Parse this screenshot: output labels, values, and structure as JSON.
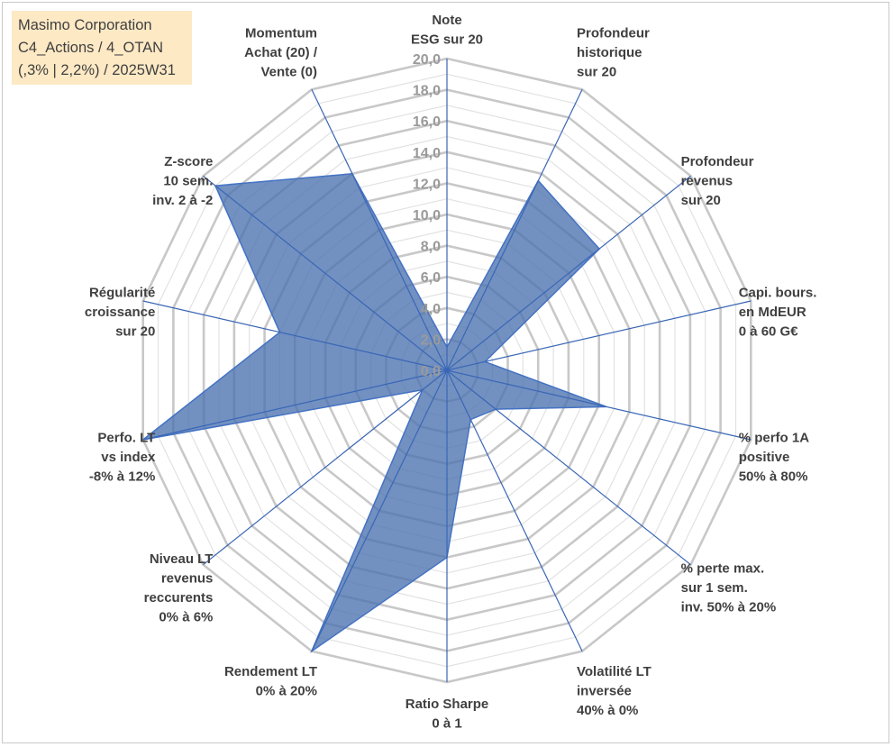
{
  "title_box": {
    "lines": [
      "Masimo Corporation",
      "C4_Actions / 4_OTAN",
      "(,3% | 2,2%) / 2025W31"
    ]
  },
  "chart_data": {
    "type": "radar",
    "axes": [
      {
        "label": [
          "Note",
          "ESG sur 20"
        ],
        "value": 1.5
      },
      {
        "label": [
          "Profondeur",
          "historique",
          "sur 20"
        ],
        "value": 13.5
      },
      {
        "label": [
          "Profondeur",
          "revenus",
          "sur 20"
        ],
        "value": 12.5
      },
      {
        "label": [
          "Capi. bours.",
          "en MdEUR",
          "0 à 60 G€"
        ],
        "value": 2.5
      },
      {
        "label": [
          "% perfo 1A",
          "positive",
          "50% à 80%"
        ],
        "value": 10.5
      },
      {
        "label": [
          "% perte max.",
          "sur 1 sem.",
          "inv. 50% à 20%"
        ],
        "value": 4.0
      },
      {
        "label": [
          "Volatilité LT",
          "inversée",
          "40% à 0%"
        ],
        "value": 3.5
      },
      {
        "label": [
          "Ratio Sharpe",
          "0 à 1"
        ],
        "value": 12.0
      },
      {
        "label": [
          "Rendement LT",
          "0% à 20%"
        ],
        "value": 20.0
      },
      {
        "label": [
          "Niveau LT",
          "revenus",
          "reccurents",
          "0% à 6%"
        ],
        "value": 2.0
      },
      {
        "label": [
          "Perfo. LT",
          "vs index",
          "-8% à 12%"
        ],
        "value": 20.0
      },
      {
        "label": [
          "Régularité",
          "croissance",
          "sur 20"
        ],
        "value": 11.0
      },
      {
        "label": [
          "Z-score",
          "10 sem.",
          "inv. 2 à -2"
        ],
        "value": 19.0
      },
      {
        "label": [
          "Momentum",
          "Achat (20) /",
          "Vente (0)"
        ],
        "value": 14.0
      }
    ],
    "rmin": 0,
    "rmax": 20,
    "ticks": [
      "0,0",
      "2,0",
      "4,0",
      "6,0",
      "8,0",
      "10,0",
      "12,0",
      "14,0",
      "16,0",
      "18,0",
      "20,0"
    ],
    "grid": true,
    "colors": {
      "fill": "#4a72b0",
      "line": "#4472c4",
      "grid_major": "#c8c8c8",
      "grid_minor": "#e2e2e2",
      "spoke": "#3a66b5"
    }
  }
}
